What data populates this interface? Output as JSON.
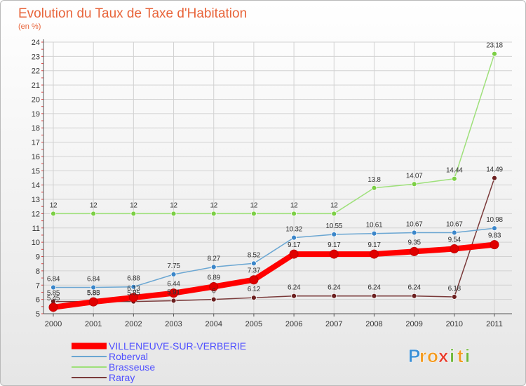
{
  "chart_data": {
    "type": "line",
    "title": "Evolution du Taux de Taxe d'Habitation",
    "subtitle": "(en %)",
    "x": [
      "2000",
      "2001",
      "2002",
      "2003",
      "2004",
      "2005",
      "2006",
      "2007",
      "2008",
      "2009",
      "2010",
      "2011"
    ],
    "ylim": [
      5,
      24
    ],
    "yticks": [
      5,
      6,
      7,
      8,
      9,
      10,
      11,
      12,
      13,
      14,
      15,
      16,
      17,
      18,
      19,
      20,
      21,
      22,
      23,
      24
    ],
    "grid": true,
    "legend_position": "bottom-left",
    "series": [
      {
        "name": "VILLENEUVE-SUR-VERBERIE",
        "color": "#ff0000",
        "point_color": "#e00000",
        "text_color": "#5050ff",
        "values": [
          5.45,
          5.83,
          6.13,
          6.44,
          6.89,
          7.37,
          9.17,
          9.17,
          9.17,
          9.35,
          9.54,
          9.83
        ],
        "labels": [
          "5.45",
          "5.83",
          "6.13",
          "6.44",
          "6.89",
          "7.37",
          "9.17",
          "9.17",
          "9.17",
          "9.35",
          "9.54",
          "9.83"
        ]
      },
      {
        "name": "Roberval",
        "color": "#6aa6d2",
        "point_color": "#3b86c9",
        "text_color": "#5050ff",
        "values": [
          6.84,
          6.84,
          6.88,
          7.75,
          8.27,
          8.52,
          10.32,
          10.55,
          10.61,
          10.67,
          10.67,
          10.98
        ],
        "labels": [
          "6.84",
          "6.84",
          "6.88",
          "7.75",
          "8.27",
          "8.52",
          "10.32",
          "10.55",
          "10.61",
          "10.67",
          "10.67",
          "10.98"
        ]
      },
      {
        "name": "Brasseuse",
        "color": "#9ee07a",
        "point_color": "#7ccf45",
        "text_color": "#5050ff",
        "values": [
          12,
          12,
          12,
          12,
          12,
          12,
          12,
          12,
          13.8,
          14.07,
          14.44,
          23.18
        ],
        "labels": [
          "12",
          "12",
          "12",
          "12",
          "12",
          "12",
          "12",
          "12",
          "13.8",
          "14.07",
          "14.44",
          "23.18"
        ]
      },
      {
        "name": "Raray",
        "color": "#7a3a3a",
        "point_color": "#6b1f1f",
        "text_color": "#5050ff",
        "values": [
          5.85,
          5.85,
          5.85,
          5.91,
          6,
          6.12,
          6.24,
          6.24,
          6.24,
          6.24,
          6.18,
          14.49
        ],
        "labels": [
          "5.85",
          "5.85",
          "5.85",
          "5.91",
          "6",
          "6.12",
          "6.24",
          "6.24",
          "6.24",
          "6.24",
          "6.18",
          "14.49"
        ]
      }
    ]
  },
  "brand": {
    "letters": [
      "P",
      "r",
      "o",
      "x",
      "i",
      "t",
      "i"
    ],
    "colors": [
      "#3a8fd6",
      "#f39a1e",
      "#f39a1e",
      "#e83a2a",
      "#6fb83a",
      "#f39a1e",
      "#6fb83a"
    ]
  }
}
